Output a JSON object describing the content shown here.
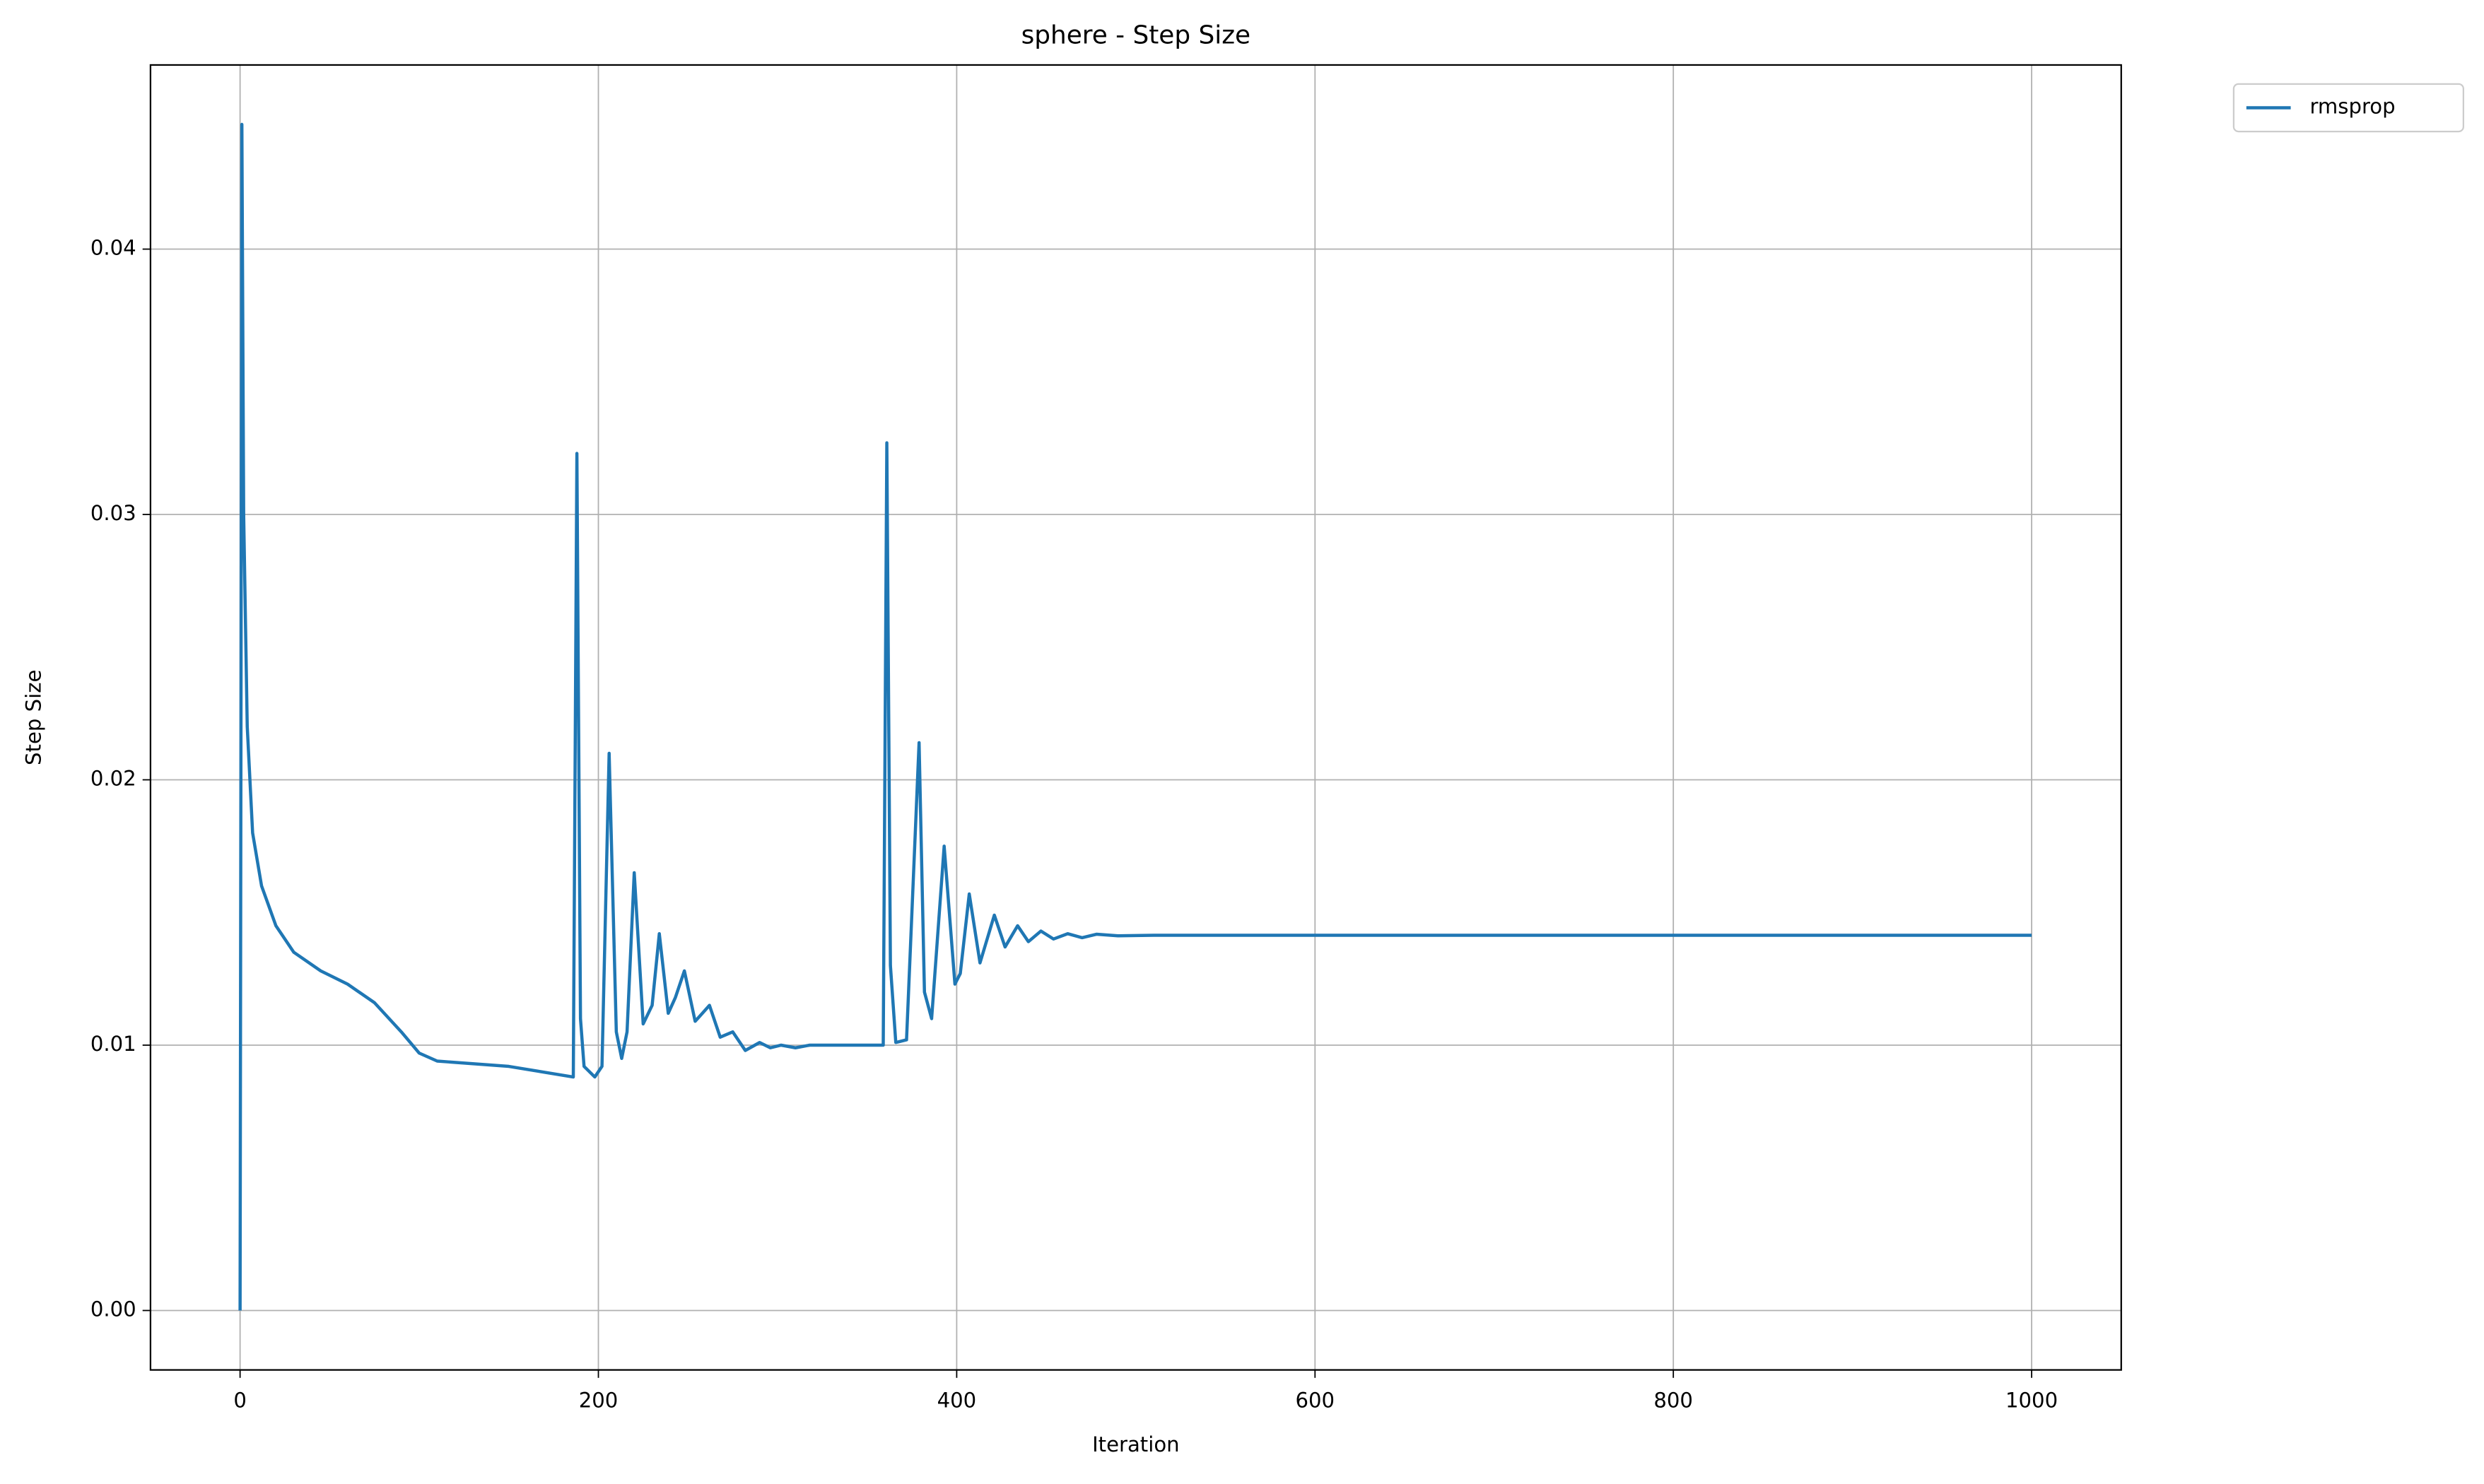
{
  "chart_data": {
    "type": "line",
    "title": "sphere - Step Size",
    "xlabel": "Iteration",
    "ylabel": "Step Size",
    "x": [
      0,
      1,
      2,
      4,
      7,
      12,
      20,
      30,
      45,
      60,
      75,
      90,
      100,
      110,
      150,
      186,
      188,
      190,
      192,
      198,
      202,
      206,
      210,
      213,
      216,
      220,
      225,
      230,
      234,
      239,
      243,
      248,
      254,
      258,
      262,
      268,
      275,
      282,
      290,
      296,
      302,
      310,
      318,
      330,
      359,
      361,
      363,
      366,
      372,
      379,
      382,
      386,
      393,
      399,
      402,
      407,
      413,
      421,
      427,
      434,
      440,
      447,
      454,
      462,
      470,
      478,
      490,
      510,
      1000
    ],
    "series": [
      {
        "name": "rmsprop",
        "color": "#1f77b4",
        "values": [
          0,
          0.0447,
          0.03,
          0.022,
          0.018,
          0.016,
          0.0145,
          0.0135,
          0.0128,
          0.0123,
          0.0116,
          0.0105,
          0.0097,
          0.0094,
          0.0092,
          0.0088,
          0.0323,
          0.011,
          0.0092,
          0.0088,
          0.0092,
          0.021,
          0.0105,
          0.0095,
          0.0105,
          0.0165,
          0.0108,
          0.0115,
          0.0142,
          0.0112,
          0.0118,
          0.0128,
          0.0109,
          0.0112,
          0.0115,
          0.0103,
          0.0105,
          0.0098,
          0.0101,
          0.0099,
          0.01,
          0.0099,
          0.01,
          0.01,
          0.01,
          0.0327,
          0.013,
          0.0101,
          0.0102,
          0.0214,
          0.012,
          0.011,
          0.0175,
          0.0123,
          0.0127,
          0.0157,
          0.0131,
          0.0149,
          0.0137,
          0.0145,
          0.0139,
          0.0143,
          0.014,
          0.0142,
          0.01405,
          0.01418,
          0.01412,
          0.01414,
          0.01414
        ]
      }
    ],
    "xlim": [
      -50,
      1050
    ],
    "ylim": [
      -0.00224,
      0.04694
    ],
    "xticks": [
      0,
      200,
      400,
      600,
      800,
      1000
    ],
    "yticks": [
      {
        "value": 0,
        "label": "0.00"
      },
      0.01,
      0.02,
      0.03,
      0.04
    ],
    "grid": true,
    "legend": "outside upper right"
  }
}
